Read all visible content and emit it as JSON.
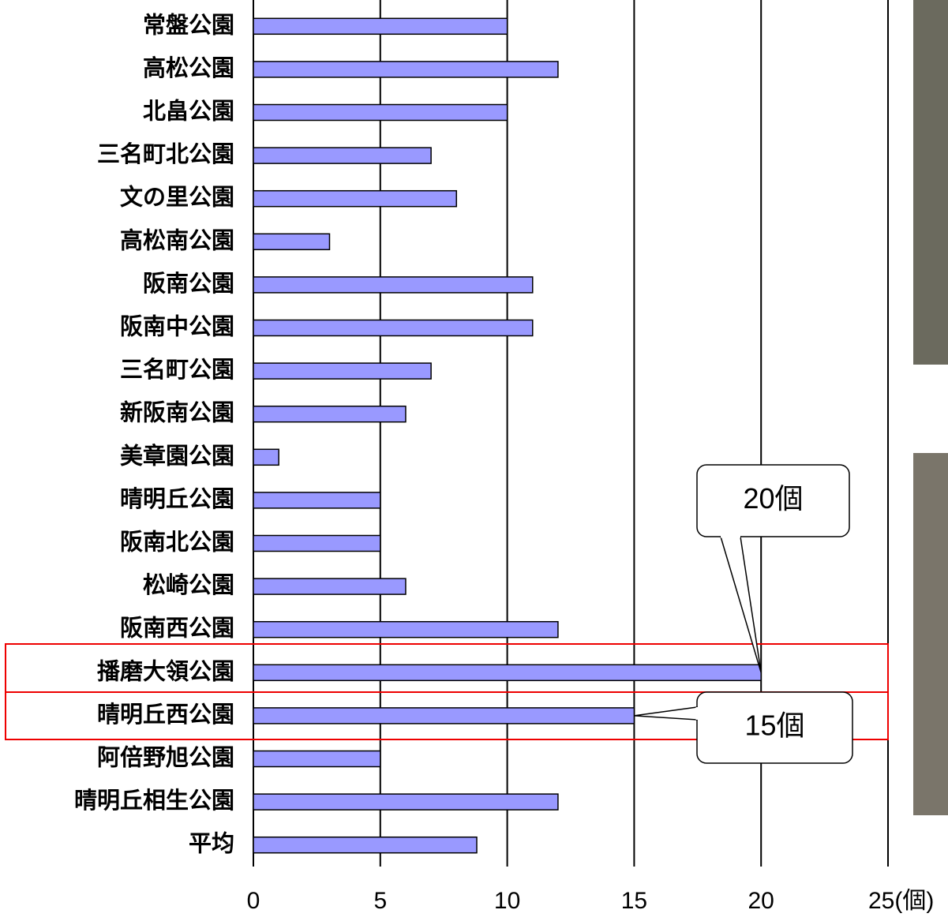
{
  "chart_data": {
    "type": "hbar",
    "categories": [
      "常盤公園",
      "高松公園",
      "北畠公園",
      "三名町北公園",
      "文の里公園",
      "高松南公園",
      "阪南公園",
      "阪南中公園",
      "三名町公園",
      "新阪南公園",
      "美章園公園",
      "晴明丘公園",
      "阪南北公園",
      "松崎公園",
      "阪南西公園",
      "播磨大領公園",
      "晴明丘西公園",
      "阿倍野旭公園",
      "晴明丘相生公園",
      "平均"
    ],
    "values": [
      10,
      12,
      10,
      7,
      8,
      3,
      11,
      11,
      7,
      6,
      1,
      5,
      5,
      6,
      12,
      20,
      15,
      5,
      12,
      8.8
    ],
    "color": "#9999ff",
    "xlim": [
      0,
      25
    ],
    "xticks": [
      0,
      5,
      10,
      15,
      20,
      {
        "value": 25,
        "label": "25(個)"
      }
    ],
    "grid": true,
    "annotations": [
      "20個",
      "15個"
    ]
  }
}
